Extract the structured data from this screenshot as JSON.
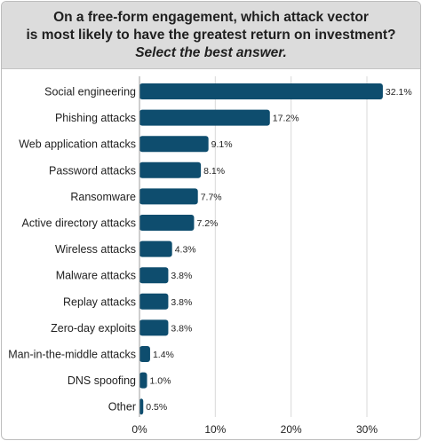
{
  "header": {
    "line1": "On a free-form engagement, which attack vector",
    "line2": "is most likely to have the greatest return on investment?",
    "line3": "Select the best answer."
  },
  "colors": {
    "bar": "#0e4d6e",
    "grid": "#d9d9d9",
    "header_bg": "#dcdcdc"
  },
  "chart_data": {
    "type": "bar",
    "orientation": "horizontal",
    "title": "On a free-form engagement, which attack vector is most likely to have the greatest return on investment? Select the best answer.",
    "categories": [
      "Social engineering",
      "Phishing attacks",
      "Web application attacks",
      "Password attacks",
      "Ransomware",
      "Active directory attacks",
      "Wireless attacks",
      "Malware attacks",
      "Replay attacks",
      "Zero-day exploits",
      "Man-in-the-middle attacks",
      "DNS spoofing",
      "Other"
    ],
    "values": [
      32.1,
      17.2,
      9.1,
      8.1,
      7.7,
      7.2,
      4.3,
      3.8,
      3.8,
      3.8,
      1.4,
      1.0,
      0.5
    ],
    "value_labels": [
      "32.1%",
      "17.2%",
      "9.1%",
      "8.1%",
      "7.7%",
      "7.2%",
      "4.3%",
      "3.8%",
      "3.8%",
      "3.8%",
      "1.4%",
      "1.0%",
      "0.5%"
    ],
    "xlim": [
      0,
      33
    ],
    "xticks": [
      0,
      10,
      20,
      30
    ],
    "xtick_labels": [
      "0%",
      "10%",
      "20%",
      "30%"
    ],
    "grid": true
  }
}
